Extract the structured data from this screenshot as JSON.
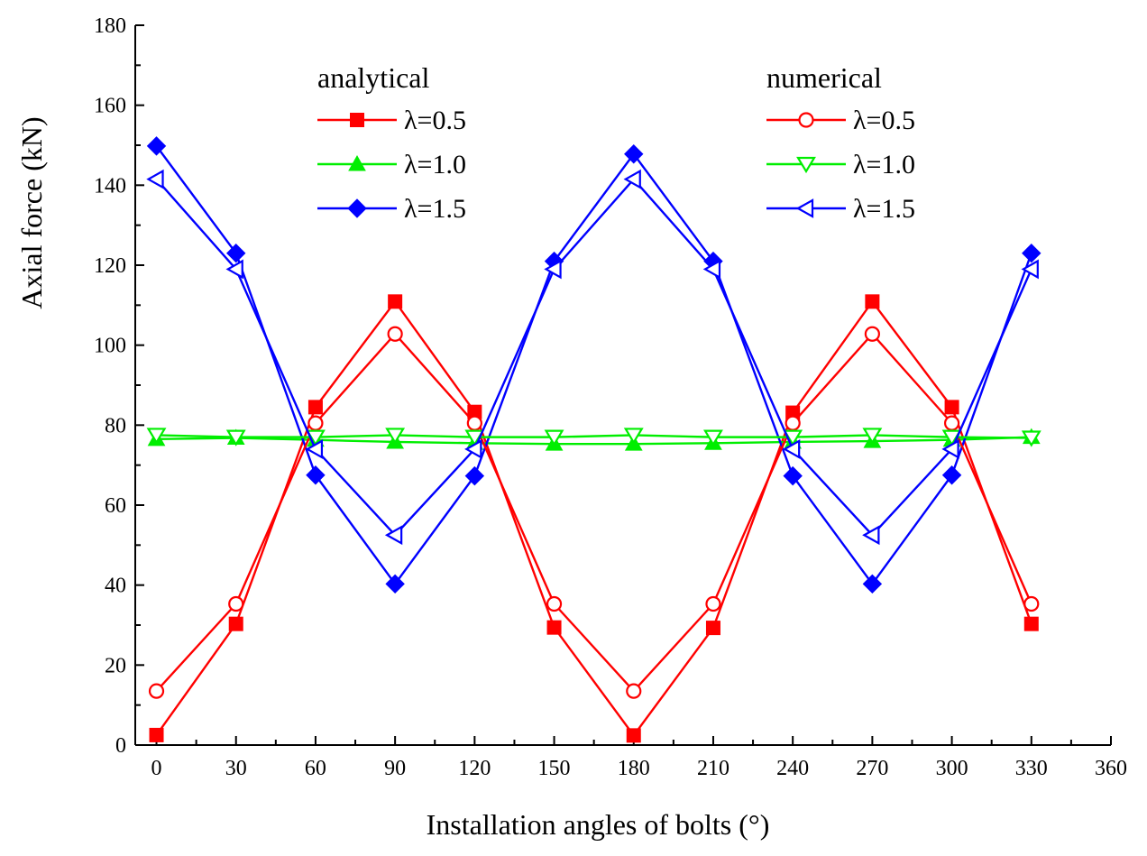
{
  "chart_data": {
    "type": "line",
    "title": "",
    "xlabel": "Installation angles of bolts (°)",
    "ylabel": "Axial force (kN)",
    "xlim": [
      -8,
      360
    ],
    "ylim": [
      0,
      180
    ],
    "xticks": [
      0,
      30,
      60,
      90,
      120,
      150,
      180,
      210,
      240,
      270,
      300,
      330,
      360
    ],
    "yticks": [
      0,
      20,
      40,
      60,
      80,
      100,
      120,
      140,
      160,
      180
    ],
    "x": [
      0,
      30,
      60,
      90,
      120,
      150,
      180,
      210,
      240,
      270,
      300,
      330
    ],
    "legend_groups": {
      "analytical": "analytical",
      "numerical": "numerical"
    },
    "series": [
      {
        "name": "λ=0.5",
        "group": "analytical",
        "color": "#ff0000",
        "marker": "square-filled",
        "values": [
          2.5,
          30.3,
          84.5,
          110.9,
          83.3,
          29.4,
          2.4,
          29.3,
          83.1,
          110.9,
          84.5,
          30.3
        ]
      },
      {
        "name": "λ=1.0",
        "group": "analytical",
        "color": "#00ee00",
        "marker": "triangle-up-filled",
        "values": [
          76.5,
          76.8,
          76.3,
          75.8,
          75.5,
          75.3,
          75.3,
          75.5,
          75.8,
          76.0,
          76.3,
          77.0
        ]
      },
      {
        "name": "λ=1.5",
        "group": "analytical",
        "color": "#0000ff",
        "marker": "diamond-filled",
        "values": [
          149.8,
          123.0,
          67.5,
          40.3,
          67.3,
          121.0,
          147.8,
          121.0,
          67.3,
          40.3,
          67.5,
          123.0
        ]
      },
      {
        "name": "λ=0.5",
        "group": "numerical",
        "color": "#ff0000",
        "marker": "circle-open",
        "values": [
          13.5,
          35.3,
          80.5,
          102.8,
          80.5,
          35.3,
          13.5,
          35.3,
          80.5,
          102.8,
          80.5,
          35.3
        ]
      },
      {
        "name": "λ=1.0",
        "group": "numerical",
        "color": "#00ee00",
        "marker": "triangle-down-open",
        "values": [
          77.5,
          77.0,
          77.0,
          77.5,
          77.0,
          77.0,
          77.5,
          77.0,
          77.0,
          77.5,
          77.0,
          76.8
        ]
      },
      {
        "name": "λ=1.5",
        "group": "numerical",
        "color": "#0000ff",
        "marker": "triangle-left-open",
        "values": [
          141.5,
          119.0,
          74.0,
          52.5,
          74.0,
          119.0,
          141.5,
          119.0,
          74.0,
          52.5,
          74.0,
          119.0
        ]
      }
    ]
  }
}
